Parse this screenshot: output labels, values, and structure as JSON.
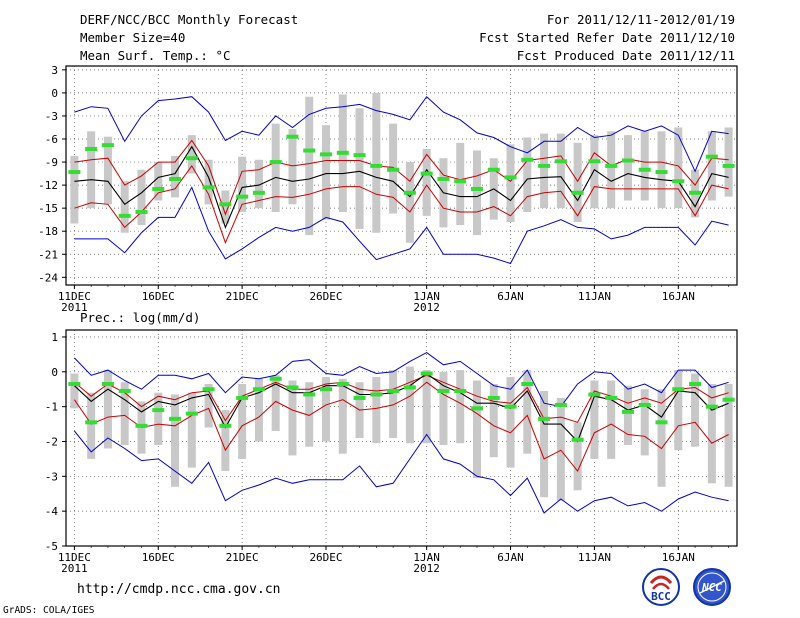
{
  "header": {
    "title": "DERF/NCC/BCC Monthly Forecast",
    "member_size": "Member Size=40",
    "for_range": "For 2011/12/11-2012/01/19",
    "started": "Fcst Started Refer Date 2011/12/10",
    "produced": "Fcst Produced Date 2011/12/11"
  },
  "footer": {
    "url": "http://cmdp.ncc.cma.gov.cn",
    "grads": "GrADS: COLA/IGES",
    "logo_bcc": "BCC",
    "logo_ncc": "NCC"
  },
  "colors": {
    "max_min": "#0000cc",
    "mean": "#000000",
    "spread": "#cc0000",
    "box": "#c8c8c8",
    "median": "#33dd33"
  },
  "chart_data": [
    {
      "type": "line",
      "id": "temp",
      "title": "Mean Surf. Temp.: °C",
      "ylabel": "°C",
      "ylim": [
        -25,
        3.5
      ],
      "yticks": [
        3,
        0,
        -3,
        -6,
        -9,
        -12,
        -15,
        -18,
        -21,
        -24
      ],
      "xlim": [
        0.5,
        40.5
      ],
      "xticks": [
        {
          "day": 1,
          "label": "11DEC",
          "label2": "2011"
        },
        {
          "day": 6,
          "label": "16DEC"
        },
        {
          "day": 11,
          "label": "21DEC"
        },
        {
          "day": 16,
          "label": "26DEC"
        },
        {
          "day": 22,
          "label": "1JAN",
          "label2": "2012"
        },
        {
          "day": 27,
          "label": "6JAN"
        },
        {
          "day": 32,
          "label": "11JAN"
        },
        {
          "day": 37,
          "label": "16JAN"
        }
      ],
      "series": [
        {
          "name": "max",
          "values": [
            -2.5,
            -1.8,
            -2.0,
            -6.3,
            -3.0,
            -1.0,
            -0.8,
            -0.5,
            -2.5,
            -6.2,
            -5.0,
            -5.5,
            -3.0,
            -4.5,
            -2.8,
            -2.0,
            -1.8,
            -1.5,
            -2.3,
            -2.8,
            -3.5,
            -0.5,
            -2.5,
            -3.5,
            -5.2,
            -5.8,
            -7.0,
            -7.8,
            -6.3,
            -6.3,
            -4.5,
            -5.8,
            -5.5,
            -4.3,
            -5.0,
            -4.3,
            -5.5,
            -10.2,
            -5.0,
            -5.3
          ]
        },
        {
          "name": "max_spread",
          "values": [
            -9.0,
            -8.7,
            -8.5,
            -12.0,
            -10.8,
            -9.0,
            -9.0,
            -6.2,
            -9.5,
            -15.8,
            -10.2,
            -10.0,
            -9.0,
            -9.5,
            -9.2,
            -8.8,
            -8.8,
            -8.8,
            -9.5,
            -9.7,
            -11.5,
            -8.0,
            -10.7,
            -11.3,
            -10.8,
            -10.0,
            -11.5,
            -8.8,
            -8.5,
            -8.2,
            -11.5,
            -7.8,
            -9.5,
            -8.6,
            -9.0,
            -9.0,
            -9.5,
            -12.0,
            -8.5,
            -8.7
          ]
        },
        {
          "name": "mean",
          "values": [
            -11.5,
            -11.3,
            -11.5,
            -14.5,
            -13.0,
            -11.0,
            -10.5,
            -7.0,
            -11.0,
            -17.5,
            -12.3,
            -12.0,
            -11.0,
            -11.5,
            -11.2,
            -10.5,
            -10.5,
            -10.2,
            -11.0,
            -11.5,
            -13.5,
            -10.0,
            -13.0,
            -13.5,
            -13.5,
            -12.5,
            -14.0,
            -11.2,
            -11.0,
            -10.9,
            -14.0,
            -10.0,
            -11.5,
            -10.5,
            -11.0,
            -11.3,
            -11.5,
            -14.8,
            -10.5,
            -11.0
          ]
        },
        {
          "name": "min_spread",
          "values": [
            -15.0,
            -14.3,
            -14.5,
            -17.5,
            -15.5,
            -13.0,
            -12.5,
            -9.5,
            -13.2,
            -19.5,
            -14.5,
            -14.0,
            -13.5,
            -13.6,
            -13.2,
            -12.5,
            -12.2,
            -12.2,
            -13.2,
            -13.6,
            -15.5,
            -12.0,
            -15.0,
            -15.5,
            -15.5,
            -14.8,
            -16.0,
            -13.5,
            -13.0,
            -12.8,
            -16.0,
            -12.2,
            -12.5,
            -12.5,
            -12.5,
            -12.5,
            -12.5,
            -16.0,
            -12.0,
            -12.5
          ]
        },
        {
          "name": "min",
          "values": [
            -19.0,
            -19.0,
            -19.0,
            -20.8,
            -18.2,
            -16.2,
            -16.2,
            -12.3,
            -18.0,
            -21.6,
            -20.3,
            -18.8,
            -17.5,
            -18.0,
            -17.5,
            -16.2,
            -16.8,
            -19.3,
            -21.7,
            -21.0,
            -20.3,
            -17.5,
            -21.0,
            -21.0,
            -21.0,
            -21.5,
            -22.2,
            -18.0,
            -17.3,
            -16.5,
            -17.5,
            -17.7,
            -19.0,
            -18.5,
            -17.5,
            -17.5,
            -17.5,
            -19.8,
            -16.7,
            -17.2
          ]
        }
      ],
      "boxes": [
        {
          "day": 1,
          "lo": -17,
          "hi": -8.2,
          "median": -10.3
        },
        {
          "day": 2,
          "lo": -15,
          "hi": -5,
          "median": -7.3
        },
        {
          "day": 3,
          "lo": -14.5,
          "hi": -5.7,
          "median": -6.8
        },
        {
          "day": 4,
          "lo": -18.2,
          "hi": -11.5,
          "median": -16.0
        },
        {
          "day": 5,
          "lo": -17.2,
          "hi": -10,
          "median": -15.5
        },
        {
          "day": 6,
          "lo": -14,
          "hi": -9,
          "median": -12.5
        },
        {
          "day": 7,
          "lo": -13.6,
          "hi": -8.2,
          "median": -11.2
        },
        {
          "day": 8,
          "lo": -10.5,
          "hi": -5.5,
          "median": -8.5
        },
        {
          "day": 9,
          "lo": -14.5,
          "hi": -8.7,
          "median": -12.3
        },
        {
          "day": 10,
          "lo": -17,
          "hi": -12.7,
          "median": -14.5
        },
        {
          "day": 11,
          "lo": -15.5,
          "hi": -8.3,
          "median": -13.5
        },
        {
          "day": 12,
          "lo": -15,
          "hi": -8.7,
          "median": -13.0
        },
        {
          "day": 13,
          "lo": -15.5,
          "hi": -4,
          "median": -9.0
        },
        {
          "day": 14,
          "lo": -14.5,
          "hi": -4.7,
          "median": -5.7
        },
        {
          "day": 15,
          "lo": -18.5,
          "hi": -0.5,
          "median": -7.5
        },
        {
          "day": 16,
          "lo": -16.5,
          "hi": -4.2,
          "median": -8.0
        },
        {
          "day": 17,
          "lo": -15.5,
          "hi": -0.2,
          "median": -7.8
        },
        {
          "day": 18,
          "lo": -17.7,
          "hi": -2,
          "median": -8.1
        },
        {
          "day": 19,
          "lo": -18.2,
          "hi": 0,
          "median": -9.5
        },
        {
          "day": 20,
          "lo": -15.7,
          "hi": -4,
          "median": -10.0
        },
        {
          "day": 21,
          "lo": -19.5,
          "hi": -9,
          "median": -13.0
        },
        {
          "day": 22,
          "lo": -16,
          "hi": -7.3,
          "median": -10.5
        },
        {
          "day": 23,
          "lo": -17.5,
          "hi": -8.5,
          "median": -11.2
        },
        {
          "day": 24,
          "lo": -17.2,
          "hi": -6.5,
          "median": -11.5
        },
        {
          "day": 25,
          "lo": -18.5,
          "hi": -7.5,
          "median": -12.5
        },
        {
          "day": 26,
          "lo": -16.5,
          "hi": -8.5,
          "median": -10.0
        },
        {
          "day": 27,
          "lo": -16.8,
          "hi": -6.7,
          "median": -11.0
        },
        {
          "day": 28,
          "lo": -15.5,
          "hi": -5.8,
          "median": -8.7
        },
        {
          "day": 29,
          "lo": -15,
          "hi": -5.3,
          "median": -9.5
        },
        {
          "day": 30,
          "lo": -15,
          "hi": -5.3,
          "median": -8.9
        },
        {
          "day": 31,
          "lo": -16.8,
          "hi": -6.5,
          "median": -13.0
        },
        {
          "day": 32,
          "lo": -15,
          "hi": -5.5,
          "median": -8.9
        },
        {
          "day": 33,
          "lo": -15,
          "hi": -5,
          "median": -9.5
        },
        {
          "day": 34,
          "lo": -14,
          "hi": -5.5,
          "median": -8.8
        },
        {
          "day": 35,
          "lo": -14,
          "hi": -5,
          "median": -10.0
        },
        {
          "day": 36,
          "lo": -15,
          "hi": -5,
          "median": -10.3
        },
        {
          "day": 37,
          "lo": -15,
          "hi": -4.5,
          "median": -11.5
        },
        {
          "day": 38,
          "lo": -16.2,
          "hi": -10,
          "median": -13.0
        },
        {
          "day": 39,
          "lo": -14,
          "hi": -5,
          "median": -8.3
        },
        {
          "day": 40,
          "lo": -13.5,
          "hi": -4.5,
          "median": -9.5
        }
      ]
    },
    {
      "type": "line",
      "id": "prec",
      "title": "Prec.: log(mm/d)",
      "ylabel": "log(mm/d)",
      "ylim": [
        -5,
        1.2
      ],
      "yticks": [
        1,
        0,
        -1,
        -2,
        -3,
        -4,
        -5
      ],
      "xlim": [
        0.5,
        40.5
      ],
      "xticks": [
        {
          "day": 1,
          "label": "11DEC",
          "label2": "2011"
        },
        {
          "day": 6,
          "label": "16DEC"
        },
        {
          "day": 11,
          "label": "21DEC"
        },
        {
          "day": 16,
          "label": "26DEC"
        },
        {
          "day": 22,
          "label": "1JAN",
          "label2": "2012"
        },
        {
          "day": 27,
          "label": "6JAN"
        },
        {
          "day": 32,
          "label": "11JAN"
        },
        {
          "day": 37,
          "label": "16JAN"
        }
      ],
      "series": [
        {
          "name": "max",
          "values": [
            0.4,
            -0.1,
            0.05,
            -0.25,
            -0.5,
            -0.1,
            -0.1,
            -0.2,
            -0.05,
            -0.6,
            -0.15,
            -0.2,
            -0.1,
            0.3,
            0.35,
            -0.05,
            -0.1,
            0.15,
            -0.05,
            0.0,
            0.3,
            0.55,
            0.2,
            0.3,
            -0.05,
            -0.4,
            -0.5,
            0.05,
            -0.9,
            -1.0,
            -0.35,
            0.0,
            -0.05,
            -0.5,
            -0.35,
            -0.6,
            0.05,
            0.05,
            -0.45,
            -0.3
          ]
        },
        {
          "name": "max_spread",
          "values": [
            -0.3,
            -0.7,
            -0.35,
            -0.6,
            -1.0,
            -0.7,
            -0.8,
            -0.6,
            -0.55,
            -1.4,
            -0.7,
            -0.5,
            -0.3,
            -0.5,
            -0.5,
            -0.35,
            -0.3,
            -0.5,
            -0.55,
            -0.5,
            -0.3,
            -0.1,
            -0.3,
            -0.5,
            -0.7,
            -0.85,
            -0.9,
            -0.45,
            -1.35,
            -1.3,
            -1.45,
            -0.55,
            -0.7,
            -0.9,
            -0.75,
            -0.9,
            -0.5,
            -0.45,
            -0.75,
            -0.6
          ]
        },
        {
          "name": "mean",
          "values": [
            -0.4,
            -0.85,
            -0.5,
            -0.8,
            -1.15,
            -0.85,
            -0.95,
            -0.75,
            -0.65,
            -1.6,
            -0.75,
            -0.6,
            -0.35,
            -0.6,
            -0.6,
            -0.4,
            -0.4,
            -0.65,
            -0.65,
            -0.6,
            -0.4,
            -0.05,
            -0.4,
            -0.6,
            -0.9,
            -0.9,
            -1.05,
            -0.55,
            -1.5,
            -1.5,
            -2.0,
            -0.7,
            -0.8,
            -1.1,
            -0.95,
            -1.3,
            -0.55,
            -0.6,
            -1.1,
            -0.9
          ]
        },
        {
          "name": "min_spread",
          "values": [
            -0.8,
            -1.5,
            -1.3,
            -1.25,
            -1.6,
            -1.5,
            -1.55,
            -1.25,
            -1.05,
            -2.25,
            -1.55,
            -1.3,
            -0.85,
            -1.1,
            -1.25,
            -0.95,
            -0.8,
            -1.1,
            -1.05,
            -0.95,
            -0.7,
            -0.3,
            -0.65,
            -0.9,
            -1.2,
            -1.55,
            -1.75,
            -1.25,
            -2.5,
            -2.25,
            -2.85,
            -1.75,
            -1.5,
            -1.8,
            -1.85,
            -2.2,
            -1.55,
            -1.45,
            -2.05,
            -1.8
          ]
        },
        {
          "name": "min",
          "values": [
            -1.7,
            -2.3,
            -1.9,
            -2.2,
            -2.55,
            -2.5,
            -2.85,
            -3.2,
            -2.6,
            -3.7,
            -3.4,
            -3.25,
            -3.05,
            -3.2,
            -3.1,
            -3.1,
            -3.1,
            -2.7,
            -3.3,
            -3.2,
            -2.5,
            -1.8,
            -2.5,
            -2.65,
            -3.0,
            -3.1,
            -3.55,
            -3.05,
            -4.05,
            -3.65,
            -4.0,
            -3.7,
            -3.6,
            -3.85,
            -3.75,
            -4.0,
            -3.65,
            -3.45,
            -3.6,
            -3.7
          ]
        }
      ],
      "boxes": [
        {
          "day": 1,
          "lo": -1.05,
          "hi": -0.05,
          "median": -0.35
        },
        {
          "day": 2,
          "lo": -2.5,
          "hi": -0.6,
          "median": -1.45
        },
        {
          "day": 3,
          "lo": -2.2,
          "hi": 0.05,
          "median": -0.35
        },
        {
          "day": 4,
          "lo": -2.1,
          "hi": -0.3,
          "median": -0.55
        },
        {
          "day": 5,
          "lo": -2.35,
          "hi": -0.85,
          "median": -1.55
        },
        {
          "day": 6,
          "lo": -2.1,
          "hi": -0.6,
          "median": -1.1
        },
        {
          "day": 7,
          "lo": -3.3,
          "hi": -0.65,
          "median": -1.35
        },
        {
          "day": 8,
          "lo": -2.75,
          "hi": -0.6,
          "median": -1.2
        },
        {
          "day": 9,
          "lo": -1.6,
          "hi": -0.35,
          "median": -0.5
        },
        {
          "day": 10,
          "lo": -2.85,
          "hi": -1.1,
          "median": -1.55
        },
        {
          "day": 11,
          "lo": -2.5,
          "hi": -0.35,
          "median": -0.75
        },
        {
          "day": 12,
          "lo": -2.0,
          "hi": -0.2,
          "median": -0.5
        },
        {
          "day": 13,
          "lo": -1.7,
          "hi": -0.1,
          "median": -0.2
        },
        {
          "day": 14,
          "lo": -2.4,
          "hi": -0.25,
          "median": -0.45
        },
        {
          "day": 15,
          "lo": -2.15,
          "hi": -0.3,
          "median": -0.65
        },
        {
          "day": 16,
          "lo": -2.0,
          "hi": -0.15,
          "median": -0.5
        },
        {
          "day": 17,
          "lo": -2.35,
          "hi": -0.2,
          "median": -0.35
        },
        {
          "day": 18,
          "lo": -1.9,
          "hi": -0.3,
          "median": -0.75
        },
        {
          "day": 19,
          "lo": -2.05,
          "hi": -0.15,
          "median": -0.65
        },
        {
          "day": 20,
          "lo": -1.9,
          "hi": 0.05,
          "median": -0.55
        },
        {
          "day": 21,
          "lo": -2.05,
          "hi": 0.15,
          "median": -0.45
        },
        {
          "day": 22,
          "lo": -2.05,
          "hi": 0.05,
          "median": -0.05
        },
        {
          "day": 23,
          "lo": -2.1,
          "hi": 0.0,
          "median": -0.55
        },
        {
          "day": 24,
          "lo": -2.05,
          "hi": 0.05,
          "median": -0.55
        },
        {
          "day": 25,
          "lo": -3.05,
          "hi": -0.25,
          "median": -1.05
        },
        {
          "day": 26,
          "lo": -2.45,
          "hi": -0.35,
          "median": -0.75
        },
        {
          "day": 27,
          "lo": -2.75,
          "hi": -0.15,
          "median": -1.0
        },
        {
          "day": 28,
          "lo": -2.35,
          "hi": 0.05,
          "median": -0.35
        },
        {
          "day": 29,
          "lo": -3.6,
          "hi": -0.55,
          "median": -1.35
        },
        {
          "day": 30,
          "lo": -3.7,
          "hi": -0.75,
          "median": -0.95
        },
        {
          "day": 31,
          "lo": -3.4,
          "hi": -1.45,
          "median": -1.95
        },
        {
          "day": 32,
          "lo": -2.5,
          "hi": -0.25,
          "median": -0.65
        },
        {
          "day": 33,
          "lo": -2.5,
          "hi": -0.25,
          "median": -0.75
        },
        {
          "day": 34,
          "lo": -2.1,
          "hi": -0.4,
          "median": -1.15
        },
        {
          "day": 35,
          "lo": -2.4,
          "hi": -0.5,
          "median": -0.95
        },
        {
          "day": 36,
          "lo": -3.3,
          "hi": -0.5,
          "median": -1.45
        },
        {
          "day": 37,
          "lo": -2.25,
          "hi": 0.05,
          "median": -0.5
        },
        {
          "day": 38,
          "lo": -2.15,
          "hi": -0.05,
          "median": -0.35
        },
        {
          "day": 39,
          "lo": -3.2,
          "hi": -0.35,
          "median": -1.0
        },
        {
          "day": 40,
          "lo": -3.3,
          "hi": -0.35,
          "median": -0.8
        }
      ]
    }
  ]
}
